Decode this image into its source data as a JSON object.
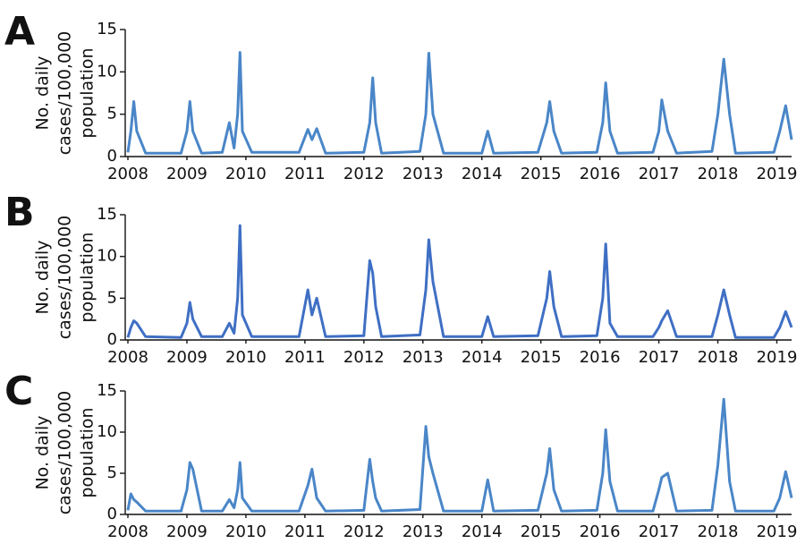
{
  "chart_data": [
    {
      "type": "line",
      "panel": "A",
      "ylabel": [
        "No. daily",
        "cases/100,000",
        "population"
      ],
      "color": "#4a86c8",
      "xlim": [
        2008,
        2019.25
      ],
      "xticks": [
        2008,
        2009,
        2010,
        2011,
        2012,
        2013,
        2014,
        2015,
        2016,
        2017,
        2018,
        2019
      ],
      "ylim": [
        0,
        15
      ],
      "yticks": [
        0,
        5,
        10,
        15
      ],
      "x": [
        2008.0,
        2008.05,
        2008.1,
        2008.15,
        2008.3,
        2008.9,
        2009.0,
        2009.05,
        2009.1,
        2009.25,
        2009.6,
        2009.72,
        2009.8,
        2009.86,
        2009.9,
        2009.94,
        2010.1,
        2010.9,
        2011.05,
        2011.12,
        2011.2,
        2011.35,
        2012.0,
        2012.1,
        2012.15,
        2012.2,
        2012.3,
        2012.95,
        2013.05,
        2013.1,
        2013.17,
        2013.35,
        2014.0,
        2014.1,
        2014.2,
        2014.95,
        2015.1,
        2015.15,
        2015.22,
        2015.35,
        2015.95,
        2016.05,
        2016.1,
        2016.17,
        2016.3,
        2016.9,
        2017.0,
        2017.05,
        2017.15,
        2017.3,
        2017.9,
        2018.0,
        2018.1,
        2018.2,
        2018.3,
        2018.95,
        2019.05,
        2019.15,
        2019.25
      ],
      "values": [
        0.5,
        3,
        6.5,
        3,
        0.4,
        0.4,
        3,
        6.5,
        3,
        0.4,
        0.5,
        4,
        1,
        5,
        12.3,
        3,
        0.5,
        0.5,
        3.2,
        2,
        3.3,
        0.4,
        0.5,
        4,
        9.3,
        4,
        0.4,
        0.6,
        5,
        12.2,
        5,
        0.4,
        0.4,
        3,
        0.4,
        0.5,
        4,
        6.5,
        3,
        0.4,
        0.5,
        4,
        8.7,
        3,
        0.4,
        0.5,
        3,
        6.7,
        3,
        0.4,
        0.6,
        5,
        11.5,
        5,
        0.4,
        0.5,
        3,
        6,
        2
      ]
    },
    {
      "type": "line",
      "panel": "B",
      "ylabel": [
        "No. daily",
        "cases/100,000",
        "population"
      ],
      "color": "#3f6fc4",
      "xlim": [
        2008,
        2019.25
      ],
      "xticks": [
        2008,
        2009,
        2010,
        2011,
        2012,
        2013,
        2014,
        2015,
        2016,
        2017,
        2018,
        2019
      ],
      "ylim": [
        0,
        15
      ],
      "yticks": [
        0,
        5,
        10,
        15
      ],
      "x": [
        2008.0,
        2008.05,
        2008.1,
        2008.15,
        2008.3,
        2008.9,
        2009.0,
        2009.05,
        2009.1,
        2009.25,
        2009.6,
        2009.72,
        2009.8,
        2009.86,
        2009.9,
        2009.94,
        2010.1,
        2010.9,
        2011.05,
        2011.12,
        2011.2,
        2011.35,
        2012.0,
        2012.1,
        2012.15,
        2012.2,
        2012.3,
        2012.95,
        2013.05,
        2013.1,
        2013.17,
        2013.35,
        2014.0,
        2014.1,
        2014.2,
        2014.95,
        2015.1,
        2015.15,
        2015.22,
        2015.35,
        2015.95,
        2016.05,
        2016.1,
        2016.17,
        2016.3,
        2016.9,
        2017.0,
        2017.05,
        2017.15,
        2017.3,
        2017.9,
        2018.0,
        2018.1,
        2018.2,
        2018.3,
        2018.95,
        2019.05,
        2019.15,
        2019.25
      ],
      "values": [
        0.3,
        1.5,
        2.3,
        2,
        0.4,
        0.3,
        2,
        4.5,
        2.5,
        0.4,
        0.4,
        2,
        0.8,
        5,
        13.7,
        3,
        0.4,
        0.4,
        6,
        3,
        5,
        0.4,
        0.5,
        9.5,
        8,
        4,
        0.4,
        0.6,
        6,
        12,
        7,
        0.4,
        0.4,
        2.8,
        0.4,
        0.5,
        5,
        8.2,
        4,
        0.4,
        0.5,
        5,
        11.5,
        2,
        0.4,
        0.4,
        1.5,
        2.3,
        3.5,
        0.4,
        0.4,
        3,
        6,
        3,
        0.3,
        0.3,
        1.5,
        3.4,
        1.5
      ]
    },
    {
      "type": "line",
      "panel": "C",
      "ylabel": [
        "No. daily",
        "cases/100,000",
        "population"
      ],
      "color": "#4a86c8",
      "xlim": [
        2008,
        2019.25
      ],
      "xticks": [
        2008,
        2009,
        2010,
        2011,
        2012,
        2013,
        2014,
        2015,
        2016,
        2017,
        2018,
        2019
      ],
      "ylim": [
        0,
        15
      ],
      "yticks": [
        0,
        5,
        10,
        15
      ],
      "x": [
        2008.0,
        2008.05,
        2008.1,
        2008.15,
        2008.3,
        2008.9,
        2009.0,
        2009.05,
        2009.1,
        2009.25,
        2009.6,
        2009.72,
        2009.8,
        2009.86,
        2009.9,
        2009.94,
        2010.1,
        2010.9,
        2011.05,
        2011.12,
        2011.2,
        2011.35,
        2012.0,
        2012.1,
        2012.15,
        2012.2,
        2012.3,
        2012.95,
        2013.05,
        2013.1,
        2013.17,
        2013.35,
        2014.0,
        2014.1,
        2014.2,
        2014.95,
        2015.1,
        2015.15,
        2015.22,
        2015.35,
        2015.95,
        2016.05,
        2016.1,
        2016.17,
        2016.3,
        2016.9,
        2017.0,
        2017.05,
        2017.15,
        2017.3,
        2017.9,
        2018.0,
        2018.1,
        2018.2,
        2018.3,
        2018.95,
        2019.05,
        2019.15,
        2019.25
      ],
      "values": [
        0.5,
        2.5,
        1.8,
        1.5,
        0.4,
        0.4,
        3,
        6.3,
        5.5,
        0.4,
        0.4,
        1.8,
        0.8,
        3,
        6.3,
        2,
        0.4,
        0.4,
        3.5,
        5.5,
        2,
        0.4,
        0.5,
        6.7,
        4,
        2,
        0.4,
        0.6,
        10.7,
        7,
        5,
        0.4,
        0.4,
        4.2,
        0.4,
        0.5,
        5,
        8,
        3,
        0.4,
        0.5,
        5,
        10.3,
        4,
        0.4,
        0.4,
        3,
        4.5,
        5,
        0.4,
        0.5,
        6,
        14,
        4,
        0.4,
        0.4,
        2,
        5.2,
        2
      ]
    }
  ]
}
